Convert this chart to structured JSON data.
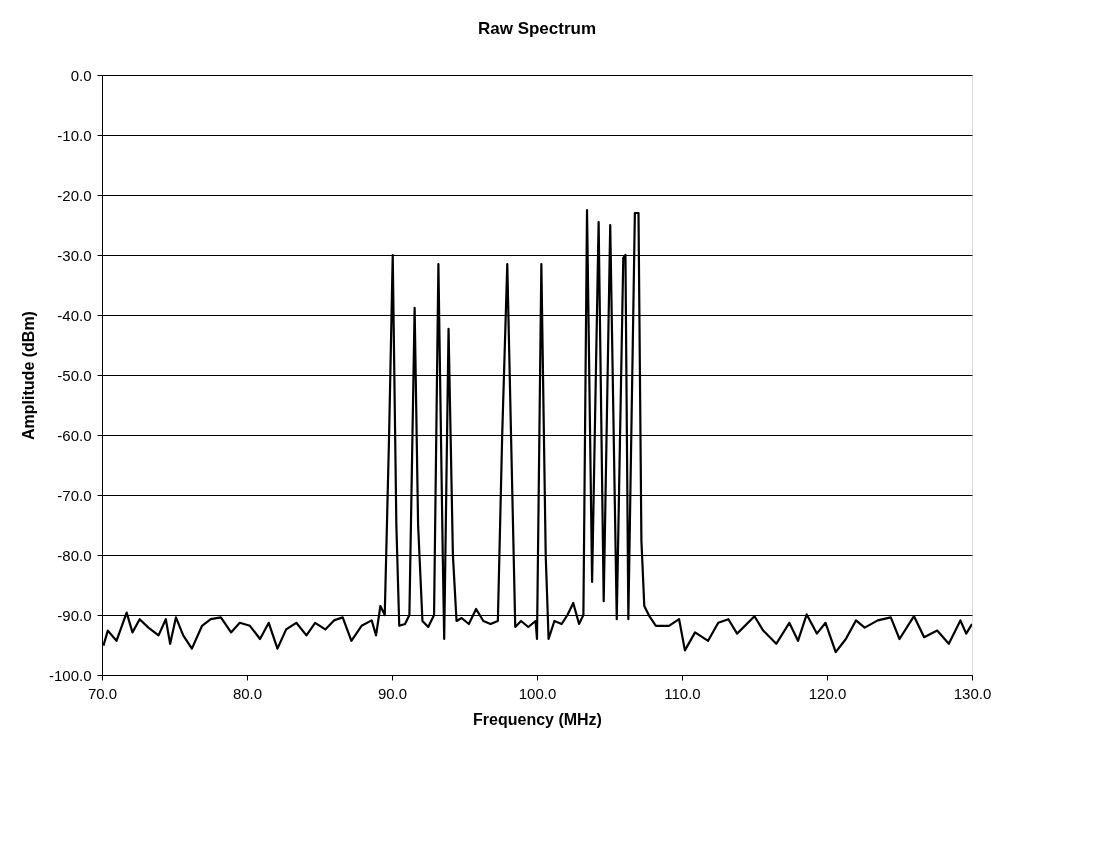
{
  "chart_data": {
    "type": "line",
    "title": "Raw Spectrum",
    "xlabel": "Frequency (MHz)",
    "ylabel": "Amplitude (dBm)",
    "xlim": [
      70,
      130
    ],
    "ylim": [
      -100,
      0
    ],
    "xticks": [
      {
        "value": 70,
        "label": "70.0"
      },
      {
        "value": 80,
        "label": "80.0"
      },
      {
        "value": 90,
        "label": "90.0"
      },
      {
        "value": 100,
        "label": "100.0"
      },
      {
        "value": 110,
        "label": "110.0"
      },
      {
        "value": 120,
        "label": "120.0"
      },
      {
        "value": 130,
        "label": "130.0"
      }
    ],
    "yticks": [
      {
        "value": 0,
        "label": "0.0"
      },
      {
        "value": -10,
        "label": "-10.0"
      },
      {
        "value": -20,
        "label": "-20.0"
      },
      {
        "value": -30,
        "label": "-30.0"
      },
      {
        "value": -40,
        "label": "-40.0"
      },
      {
        "value": -50,
        "label": "-50.0"
      },
      {
        "value": -60,
        "label": "-60.0"
      },
      {
        "value": -70,
        "label": "-70.0"
      },
      {
        "value": -80,
        "label": "-80.0"
      },
      {
        "value": -90,
        "label": "-90.0"
      },
      {
        "value": -100,
        "label": "-100.0"
      }
    ],
    "grid": "y",
    "marker": "none",
    "line_style": "solid",
    "series": [
      {
        "color": "#000000",
        "x": [
          70.1,
          70.4,
          71.0,
          71.7,
          72.1,
          72.6,
          73.2,
          73.9,
          74.4,
          74.7,
          75.1,
          75.6,
          76.2,
          76.9,
          77.5,
          78.2,
          78.9,
          79.5,
          80.2,
          80.9,
          81.5,
          82.1,
          82.7,
          83.4,
          84.1,
          84.7,
          85.4,
          86.0,
          86.6,
          87.2,
          87.9,
          88.6,
          88.9,
          89.2,
          89.5,
          89.8,
          90.05,
          90.3,
          90.5,
          90.9,
          91.2,
          91.56,
          91.8,
          92.1,
          92.5,
          92.9,
          93.2,
          93.5,
          93.6,
          93.9,
          94.2,
          94.45,
          94.8,
          95.3,
          95.8,
          96.3,
          96.8,
          97.3,
          97.6,
          97.95,
          98.3,
          98.5,
          98.9,
          99.4,
          99.9,
          100.0,
          100.3,
          100.6,
          100.8,
          101.2,
          101.7,
          102.1,
          102.5,
          102.9,
          103.2,
          103.45,
          103.8,
          104.25,
          104.6,
          105.05,
          105.5,
          105.95,
          106.1,
          106.3,
          106.75,
          107.0,
          107.2,
          107.4,
          107.75,
          108.2,
          109.1,
          109.8,
          110.2,
          110.9,
          111.8,
          112.5,
          113.2,
          113.8,
          115.0,
          115.6,
          116.5,
          117.4,
          118.0,
          118.6,
          119.3,
          119.9,
          120.6,
          121.3,
          122.0,
          122.6,
          123.5,
          124.4,
          125.0,
          126.0,
          126.7,
          127.6,
          128.4,
          129.2,
          129.6,
          130.0
        ],
        "values": [
          -95.1,
          -92.6,
          -94.3,
          -89.6,
          -92.9,
          -90.7,
          -92.1,
          -93.4,
          -90.7,
          -94.8,
          -90.4,
          -93.4,
          -95.6,
          -91.8,
          -90.7,
          -90.4,
          -92.9,
          -91.3,
          -91.8,
          -94.0,
          -91.3,
          -95.6,
          -92.4,
          -91.3,
          -93.4,
          -91.3,
          -92.4,
          -90.9,
          -90.4,
          -94.3,
          -91.8,
          -90.9,
          -93.4,
          -88.5,
          -90,
          -60,
          -30,
          -75,
          -91.8,
          -91.5,
          -90,
          -38.8,
          -75,
          -91,
          -92,
          -90,
          -31.5,
          -80,
          -94,
          -42.3,
          -80,
          -91,
          -90.5,
          -91.5,
          -89,
          -91,
          -91.5,
          -91,
          -60,
          -31.5,
          -70,
          -92,
          -91,
          -92,
          -91,
          -94,
          -31.5,
          -80,
          -94,
          -91,
          -91.5,
          -90,
          -88,
          -91.5,
          -90,
          -22.5,
          -84.5,
          -24.5,
          -87.7,
          -25,
          -90.7,
          -30.5,
          -30,
          -90.7,
          -23,
          -23,
          -77.6,
          -88.5,
          -90.2,
          -91.8,
          -91.8,
          -90.7,
          -95.9,
          -92.9,
          -94.3,
          -91.3,
          -90.7,
          -93.1,
          -90.2,
          -92.6,
          -94.8,
          -91.3,
          -94.3,
          -89.9,
          -93.1,
          -91.3,
          -96.2,
          -94.0,
          -90.9,
          -92.1,
          -90.9,
          -90.4,
          -94.0,
          -90.2,
          -93.7,
          -92.6,
          -94.8,
          -90.9,
          -93.1,
          -91.5
        ]
      }
    ]
  }
}
